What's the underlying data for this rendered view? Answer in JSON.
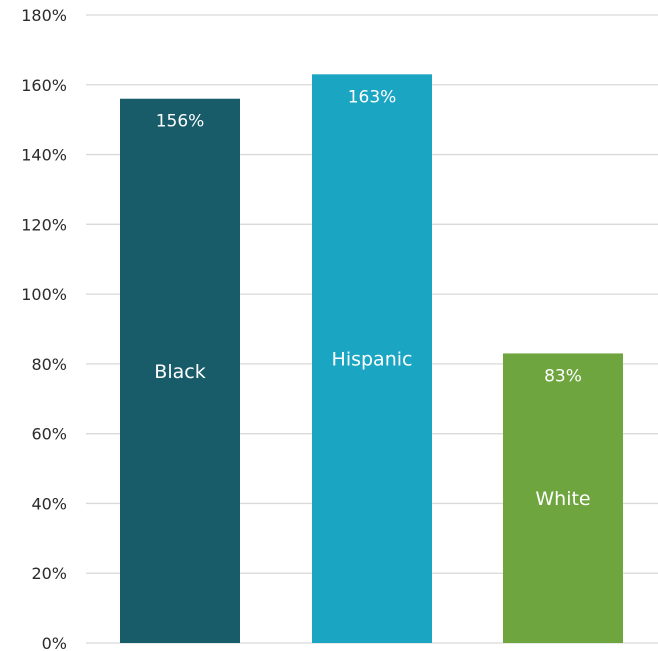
{
  "chart_data": {
    "type": "bar",
    "categories": [
      "Black",
      "Hispanic",
      "White"
    ],
    "values": [
      156,
      163,
      83
    ],
    "value_labels": [
      "156%",
      "163%",
      "83%"
    ],
    "colors": [
      "#175c68",
      "#1aa5c3",
      "#6ea53f"
    ],
    "title": "",
    "xlabel": "",
    "ylabel": "",
    "ylim": [
      0,
      180
    ],
    "yticks": [
      0,
      20,
      40,
      60,
      80,
      100,
      120,
      140,
      160,
      180
    ],
    "ytick_labels": [
      "0%",
      "20%",
      "40%",
      "60%",
      "80%",
      "100%",
      "120%",
      "140%",
      "160%",
      "180%"
    ],
    "grid": true,
    "legend": "none",
    "category_label_placement": "inside-bar",
    "value_label_placement": "inside-bar-top",
    "grid_color": "#d9d9d9"
  }
}
